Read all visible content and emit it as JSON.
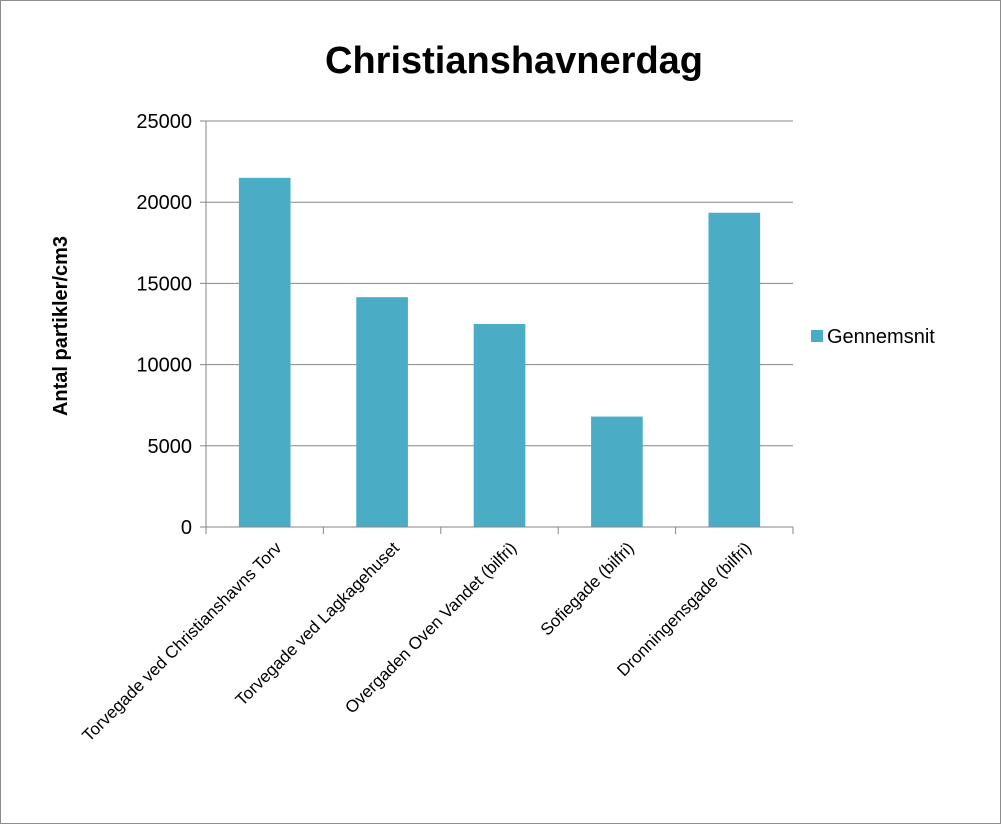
{
  "chart_data": {
    "type": "bar",
    "title": "Christianshavnerdag",
    "ylabel": "Antal partikler/cm3",
    "xlabel": "",
    "ylim": [
      0,
      25000
    ],
    "yticks": [
      0,
      5000,
      10000,
      15000,
      20000,
      25000
    ],
    "grid": true,
    "legend_position": "right",
    "categories": [
      "Torvegade ved Christianshavns Torv",
      "Torvegade ved Lagkagehuset",
      "Overgaden Oven Vandet (bilfri)",
      "Sofiegade (bilfri)",
      "Dronningensgade (bilfri)"
    ],
    "series": [
      {
        "name": "Gennemsnit",
        "color": "#4bacc6",
        "values": [
          21500,
          14150,
          12500,
          6800,
          19350
        ]
      }
    ]
  }
}
